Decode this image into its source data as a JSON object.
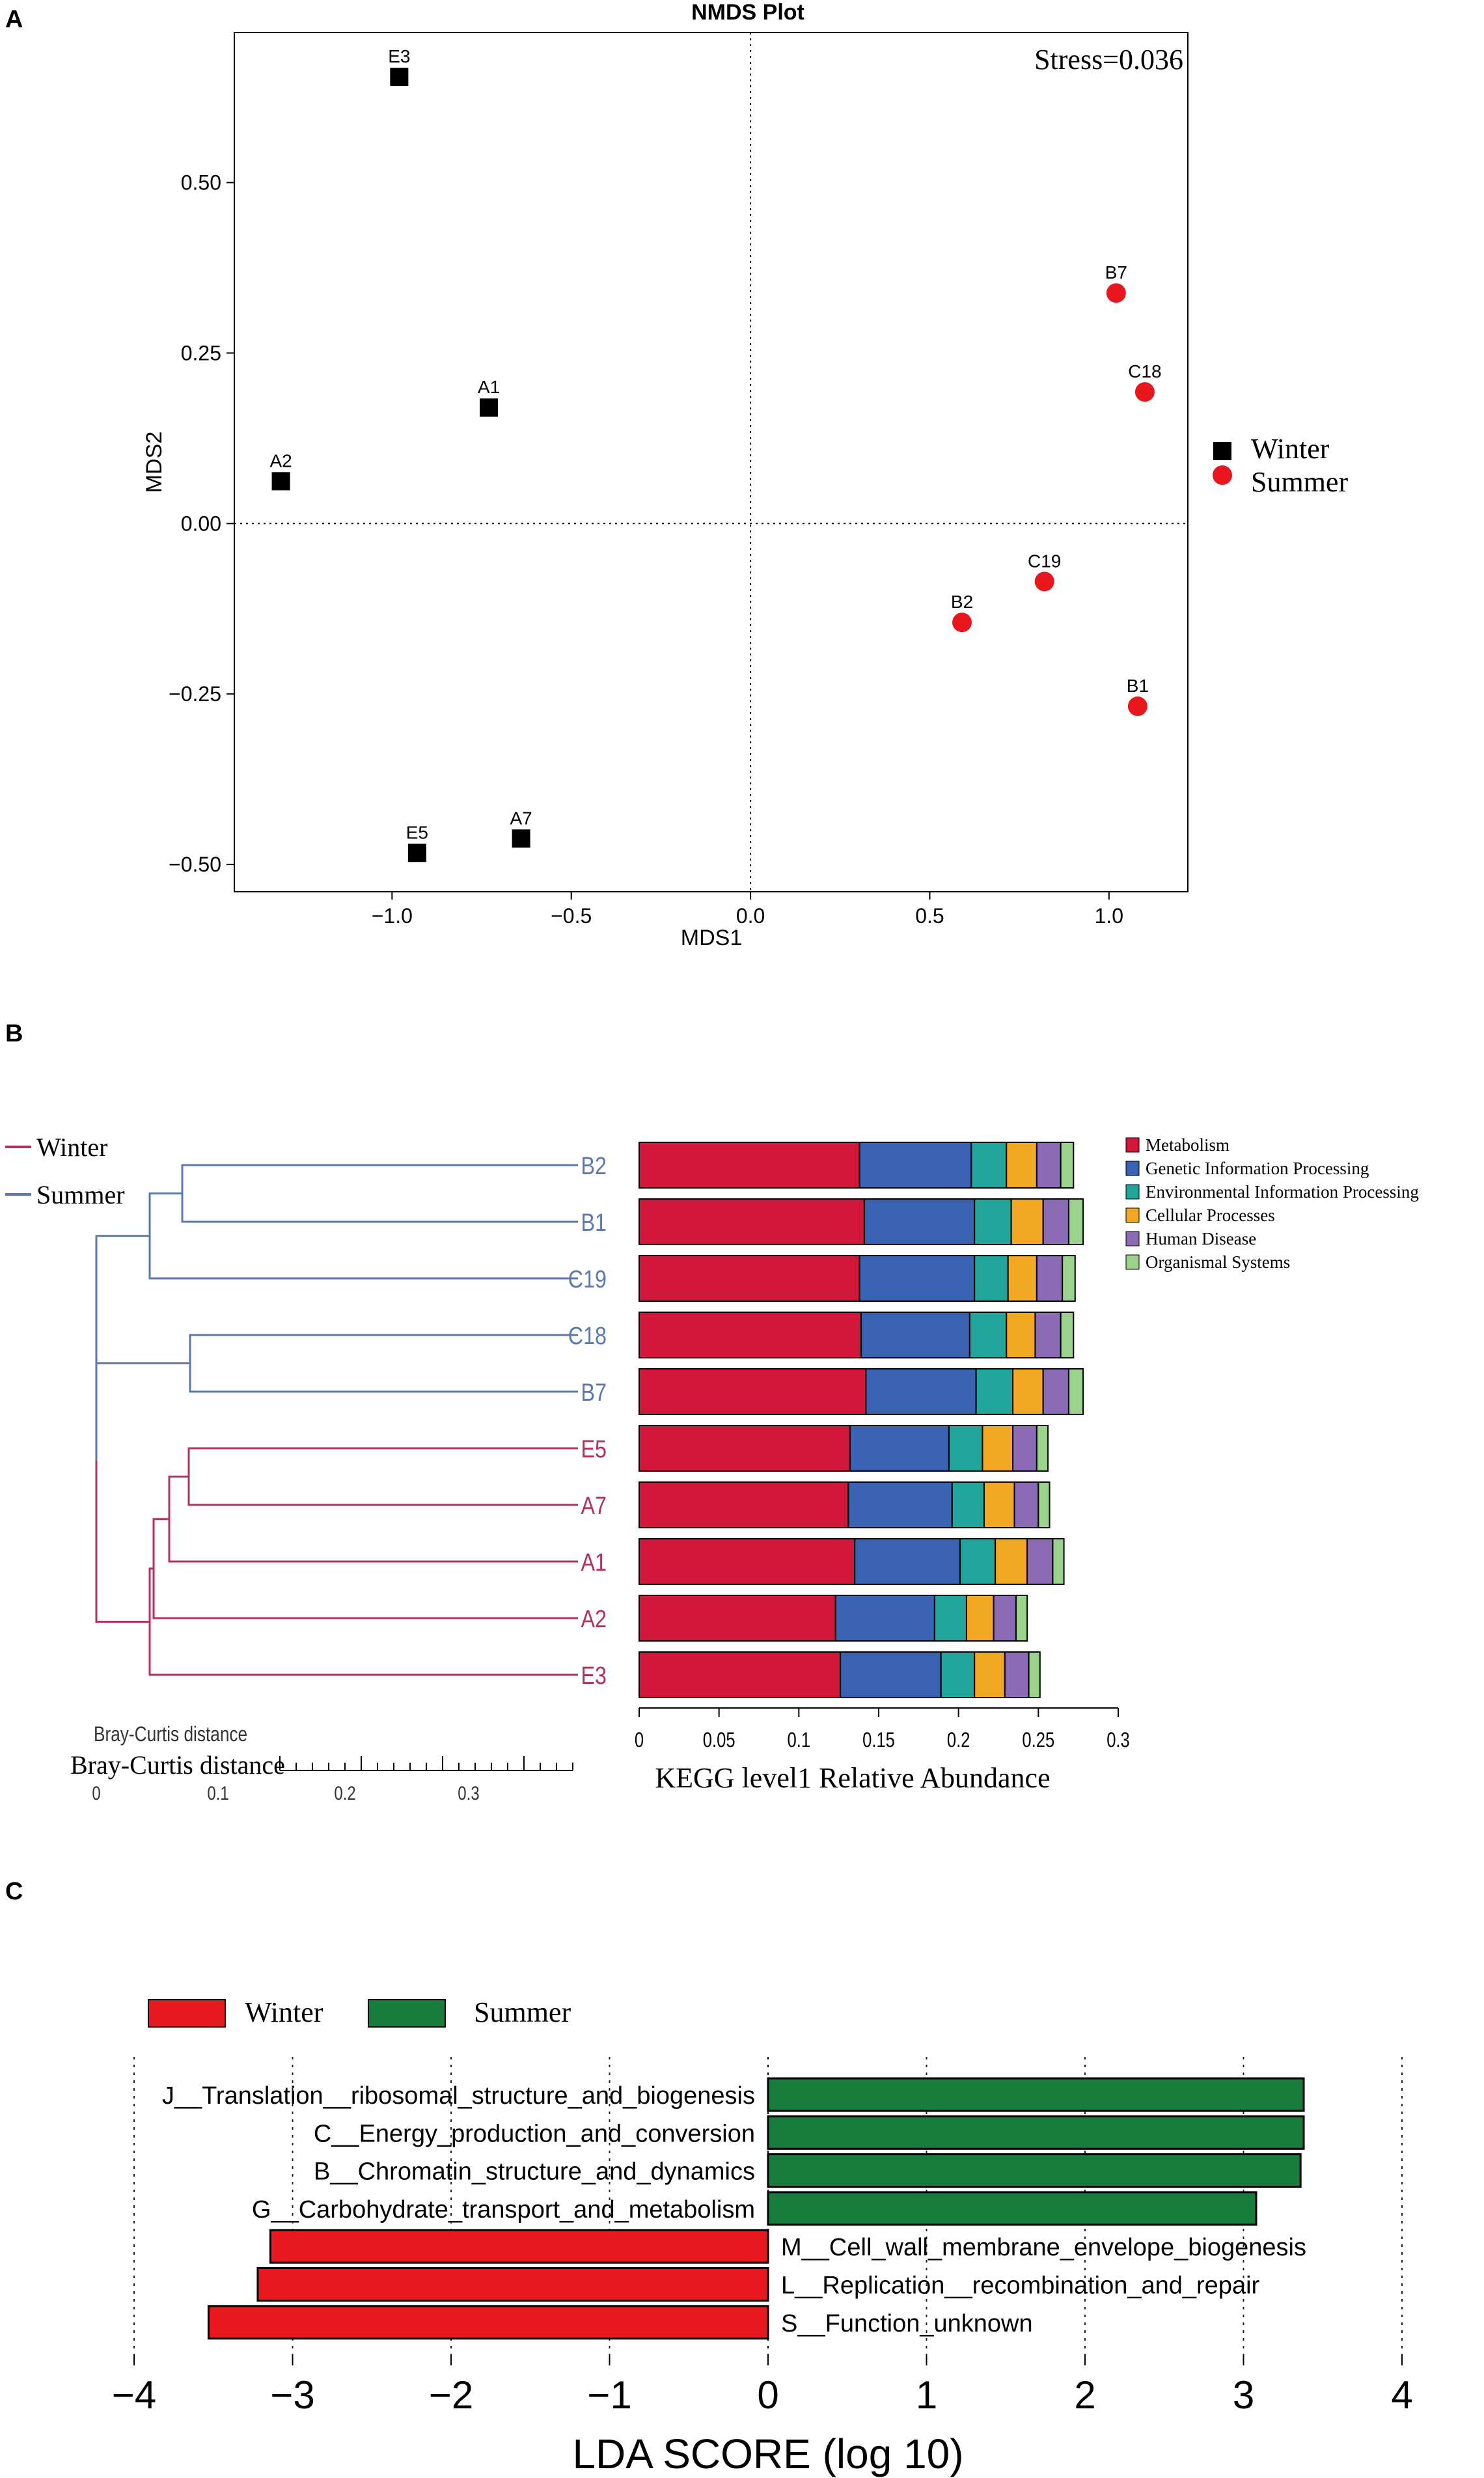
{
  "panels": {
    "a": "A",
    "b": "B",
    "c": "C"
  },
  "chart_data": [
    {
      "type": "scatter",
      "title": "NMDS Plot",
      "xlabel": "MDS1",
      "ylabel": "MDS2",
      "xlim": [
        -1.44,
        1.22
      ],
      "ylim": [
        -0.54,
        0.72
      ],
      "x_ticks": [
        -1.0,
        -0.5,
        0.0,
        0.5,
        1.0
      ],
      "x_tick_labels": [
        "−1.0",
        "−0.5",
        "0.0",
        "0.5",
        "1.0"
      ],
      "y_ticks": [
        -0.5,
        -0.25,
        0.0,
        0.25,
        0.5
      ],
      "y_tick_labels": [
        "−0.50",
        "−0.25",
        "0.00",
        "0.25",
        "0.50"
      ],
      "reference_lines": {
        "x": 0,
        "y": 0
      },
      "annotation": "Stress=0.036",
      "legend": [
        {
          "name": "Winter",
          "marker": "square",
          "color": "#000000"
        },
        {
          "name": "Summer",
          "marker": "circle",
          "color": "#e8161d"
        }
      ],
      "series": [
        {
          "name": "Winter",
          "points": [
            {
              "label": "E3",
              "x": -0.98,
              "y": 0.655
            },
            {
              "label": "A1",
              "x": -0.73,
              "y": 0.17
            },
            {
              "label": "A2",
              "x": -1.31,
              "y": 0.062
            },
            {
              "label": "E5",
              "x": -0.93,
              "y": -0.483
            },
            {
              "label": "A7",
              "x": -0.64,
              "y": -0.462
            }
          ]
        },
        {
          "name": "Summer",
          "points": [
            {
              "label": "B7",
              "x": 1.02,
              "y": 0.338
            },
            {
              "label": "C18",
              "x": 1.1,
              "y": 0.193
            },
            {
              "label": "C19",
              "x": 0.82,
              "y": -0.085
            },
            {
              "label": "B2",
              "x": 0.59,
              "y": -0.145
            },
            {
              "label": "B1",
              "x": 1.08,
              "y": -0.268
            }
          ]
        }
      ]
    },
    {
      "type": "bar",
      "orientation": "horizontal-stacked",
      "xlabel": "KEGG level1 Relative Abundance",
      "xlim": [
        0,
        0.3
      ],
      "x_ticks": [
        0,
        0.05,
        0.1,
        0.15,
        0.2,
        0.25,
        0.3
      ],
      "x_tick_labels": [
        "0",
        "0.05",
        "0.1",
        "0.15",
        "0.2",
        "0.25",
        "0.3"
      ],
      "dendrogram_scale_label": "Bray-Curtis distance",
      "dendrogram_scale_label_2": "Bray-Curtis distance",
      "dendrogram_ticks": [
        "0",
        "0.1",
        "0.2",
        "0.3"
      ],
      "group_legend": [
        {
          "name": "Winter",
          "color": "#b5305f"
        },
        {
          "name": "Summer",
          "color": "#5b79ae"
        }
      ],
      "categories": [
        "B2",
        "B1",
        "C19",
        "C18",
        "B7",
        "E5",
        "A7",
        "A1",
        "A2",
        "E3"
      ],
      "category_groups": [
        "Summer",
        "Summer",
        "Summer",
        "Summer",
        "Summer",
        "Winter",
        "Winter",
        "Winter",
        "Winter",
        "Winter"
      ],
      "series": [
        {
          "name": "Metabolism",
          "color": "#d1183b",
          "values": [
            0.138,
            0.141,
            0.138,
            0.139,
            0.142,
            0.132,
            0.131,
            0.135,
            0.123,
            0.126
          ]
        },
        {
          "name": "Genetic Information Processing",
          "color": "#3a62b3",
          "values": [
            0.07,
            0.069,
            0.072,
            0.068,
            0.069,
            0.062,
            0.065,
            0.066,
            0.062,
            0.063
          ]
        },
        {
          "name": "Environmental Information Processing",
          "color": "#21a59a",
          "values": [
            0.022,
            0.023,
            0.021,
            0.023,
            0.023,
            0.021,
            0.02,
            0.022,
            0.02,
            0.021
          ]
        },
        {
          "name": "Cellular Processes",
          "color": "#f3a823",
          "values": [
            0.019,
            0.02,
            0.018,
            0.018,
            0.019,
            0.019,
            0.019,
            0.02,
            0.017,
            0.019
          ]
        },
        {
          "name": "Human Disease",
          "color": "#8b6bb6",
          "values": [
            0.015,
            0.016,
            0.016,
            0.016,
            0.016,
            0.015,
            0.015,
            0.016,
            0.014,
            0.015
          ]
        },
        {
          "name": "Organismal Systems",
          "color": "#9bd28c",
          "values": [
            0.008,
            0.009,
            0.008,
            0.008,
            0.009,
            0.007,
            0.007,
            0.007,
            0.007,
            0.007
          ]
        }
      ]
    },
    {
      "type": "bar",
      "orientation": "horizontal",
      "xlabel": "LDA SCORE (log 10)",
      "xlim": [
        -4.2,
        4.2
      ],
      "x_ticks": [
        -4,
        -3,
        -2,
        -1,
        0,
        1,
        2,
        3,
        4
      ],
      "x_tick_labels": [
        "−4",
        "−3",
        "−2",
        "−1",
        "0",
        "1",
        "2",
        "3",
        "4"
      ],
      "legend": [
        {
          "name": "Winter",
          "color": "#e8191e"
        },
        {
          "name": "Summer",
          "color": "#167d3c"
        }
      ],
      "bars": [
        {
          "label": "J__Translation__ribosomal_structure_and_biogenesis",
          "value": 3.38,
          "group": "Summer"
        },
        {
          "label": "C__Energy_production_and_conversion",
          "value": 3.38,
          "group": "Summer"
        },
        {
          "label": "B__Chromatin_structure_and_dynamics",
          "value": 3.36,
          "group": "Summer"
        },
        {
          "label": "G__Carbohydrate_transport_and_metabolism",
          "value": 3.08,
          "group": "Summer"
        },
        {
          "label": "M__Cell_wall_membrane_envelope_biogenesis",
          "value": -3.14,
          "group": "Winter"
        },
        {
          "label": "L__Replication__recombination_and_repair",
          "value": -3.22,
          "group": "Winter"
        },
        {
          "label": "S__Function_unknown",
          "value": -3.53,
          "group": "Winter"
        }
      ]
    }
  ]
}
